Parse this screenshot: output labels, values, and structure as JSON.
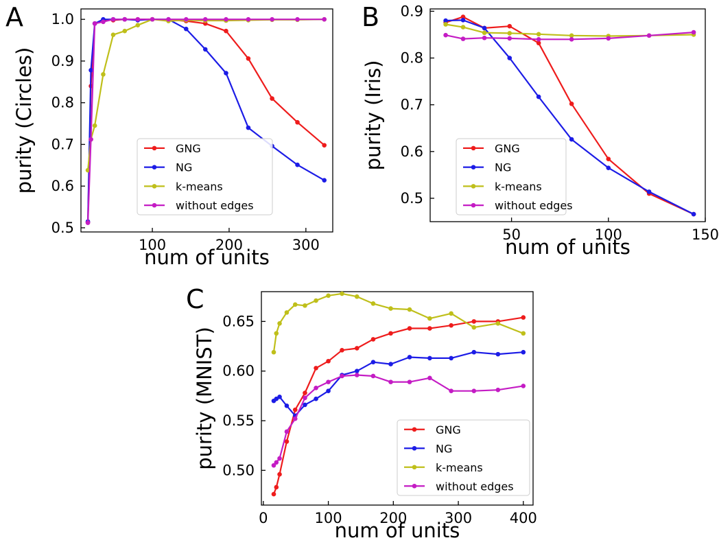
{
  "colors": {
    "GNG": "#ee1c1c",
    "NG": "#1c1ce6",
    "k-means": "#bfbf1a",
    "without edges": "#c41cc4"
  },
  "chart_data": [
    {
      "panel": "A",
      "type": "line",
      "xlabel": "num of units",
      "ylabel": "purity (Circles)",
      "xlim": [
        7,
        335
      ],
      "ylim": [
        0.49,
        1.025
      ],
      "xticks": [
        100,
        200,
        300
      ],
      "yticks": [
        0.5,
        0.6,
        0.7,
        0.8,
        0.9,
        1.0
      ],
      "xtick_labels": [
        "100",
        "200",
        "300"
      ],
      "ytick_labels": [
        "0.5",
        "0.6",
        "0.7",
        "0.8",
        "0.9",
        "1.0"
      ],
      "legend": {
        "position": "lower-right",
        "entries": [
          "GNG",
          "NG",
          "k-means",
          "without edges"
        ]
      },
      "series": [
        {
          "name": "GNG",
          "x": [
            16,
            20,
            25,
            36,
            49,
            64,
            81,
            100,
            121,
            144,
            169,
            196,
            225,
            256,
            289,
            324
          ],
          "y": [
            0.513,
            0.84,
            0.99,
            0.999,
            0.998,
            1.0,
            1.0,
            1.0,
            0.999,
            0.996,
            0.99,
            0.972,
            0.906,
            0.81,
            0.753,
            0.698
          ]
        },
        {
          "name": "NG",
          "x": [
            16,
            20,
            25,
            36,
            49,
            64,
            81,
            100,
            121,
            144,
            169,
            196,
            225,
            256,
            289,
            324
          ],
          "y": [
            0.515,
            0.878,
            0.99,
            1.0,
            1.0,
            1.0,
            0.998,
            1.0,
            1.0,
            0.977,
            0.928,
            0.871,
            0.74,
            0.696,
            0.651,
            0.614
          ]
        },
        {
          "name": "k-means",
          "x": [
            16,
            20,
            25,
            36,
            49,
            64,
            81,
            100,
            121,
            144,
            169,
            196,
            225,
            256,
            289,
            324
          ],
          "y": [
            0.638,
            0.712,
            0.745,
            0.868,
            0.963,
            0.972,
            0.986,
            1.0,
            0.996,
            0.998,
            0.997,
            0.997,
            0.998,
            0.999,
            0.999,
            1.0
          ]
        },
        {
          "name": "without edges",
          "x": [
            16,
            20,
            25,
            36,
            49,
            64,
            81,
            100,
            121,
            144,
            169,
            196,
            225,
            256,
            289,
            324
          ],
          "y": [
            0.512,
            0.712,
            0.99,
            0.994,
            1.0,
            1.0,
            1.0,
            1.0,
            1.0,
            1.0,
            1.0,
            1.0,
            1.0,
            1.0,
            1.0,
            1.0
          ]
        }
      ]
    },
    {
      "panel": "B",
      "type": "line",
      "xlabel": "num of units",
      "ylabel": "purity (Iris)",
      "xlim": [
        8,
        150
      ],
      "ylim": [
        0.45,
        0.905
      ],
      "xticks": [
        50,
        100,
        150
      ],
      "yticks": [
        0.5,
        0.6,
        0.7,
        0.8,
        0.9
      ],
      "xtick_labels": [
        "50",
        "100",
        "150"
      ],
      "ytick_labels": [
        "0.5",
        "0.6",
        "0.7",
        "0.8",
        "0.9"
      ],
      "legend": {
        "position": "lower-right",
        "entries": [
          "GNG",
          "NG",
          "k-means",
          "without edges"
        ]
      },
      "series": [
        {
          "name": "GNG",
          "x": [
            16,
            25,
            36,
            49,
            64,
            81,
            100,
            121,
            144
          ],
          "y": [
            0.876,
            0.888,
            0.864,
            0.868,
            0.832,
            0.702,
            0.584,
            0.51,
            0.466
          ]
        },
        {
          "name": "NG",
          "x": [
            16,
            25,
            36,
            49,
            64,
            81,
            100,
            121,
            144
          ],
          "y": [
            0.88,
            0.881,
            0.864,
            0.8,
            0.717,
            0.626,
            0.565,
            0.514,
            0.466
          ]
        },
        {
          "name": "k-means",
          "x": [
            16,
            25,
            36,
            49,
            64,
            81,
            100,
            121,
            144
          ],
          "y": [
            0.872,
            0.866,
            0.854,
            0.853,
            0.851,
            0.848,
            0.847,
            0.848,
            0.85
          ]
        },
        {
          "name": "without edges",
          "x": [
            16,
            25,
            36,
            49,
            64,
            81,
            100,
            121,
            144
          ],
          "y": [
            0.849,
            0.841,
            0.843,
            0.842,
            0.84,
            0.84,
            0.842,
            0.848,
            0.855
          ]
        }
      ]
    },
    {
      "panel": "C",
      "type": "line",
      "xlabel": "num of units",
      "ylabel": "purity (MNIST)",
      "xlim": [
        -3,
        415
      ],
      "ylim": [
        0.465,
        0.68
      ],
      "xticks": [
        0,
        100,
        200,
        300,
        400
      ],
      "yticks": [
        0.5,
        0.55,
        0.6,
        0.65
      ],
      "xtick_labels": [
        "0",
        "100",
        "200",
        "300",
        "400"
      ],
      "ytick_labels": [
        "0.50",
        "0.55",
        "0.60",
        "0.65"
      ],
      "legend": {
        "position": "lower-right",
        "entries": [
          "GNG",
          "NG",
          "k-means",
          "without edges"
        ]
      },
      "series": [
        {
          "name": "GNG",
          "x": [
            16,
            20,
            25,
            36,
            49,
            64,
            81,
            100,
            121,
            144,
            169,
            196,
            225,
            256,
            289,
            324,
            361,
            400
          ],
          "y": [
            0.476,
            0.483,
            0.496,
            0.529,
            0.561,
            0.578,
            0.603,
            0.61,
            0.621,
            0.623,
            0.632,
            0.638,
            0.643,
            0.643,
            0.646,
            0.65,
            0.65,
            0.654
          ]
        },
        {
          "name": "NG",
          "x": [
            16,
            20,
            25,
            36,
            49,
            64,
            81,
            100,
            121,
            144,
            169,
            196,
            225,
            256,
            289,
            324,
            361,
            400
          ],
          "y": [
            0.57,
            0.572,
            0.574,
            0.565,
            0.555,
            0.566,
            0.572,
            0.58,
            0.596,
            0.6,
            0.609,
            0.607,
            0.614,
            0.613,
            0.613,
            0.619,
            0.617,
            0.619
          ]
        },
        {
          "name": "k-means",
          "x": [
            16,
            20,
            25,
            36,
            49,
            64,
            81,
            100,
            121,
            144,
            169,
            196,
            225,
            256,
            289,
            324,
            361,
            400
          ],
          "y": [
            0.619,
            0.638,
            0.648,
            0.659,
            0.667,
            0.666,
            0.671,
            0.676,
            0.678,
            0.675,
            0.668,
            0.663,
            0.662,
            0.653,
            0.658,
            0.644,
            0.648,
            0.638
          ]
        },
        {
          "name": "without edges",
          "x": [
            16,
            20,
            25,
            36,
            49,
            64,
            81,
            100,
            121,
            144,
            169,
            196,
            225,
            256,
            289,
            324,
            361,
            400
          ],
          "y": [
            0.505,
            0.508,
            0.512,
            0.539,
            0.552,
            0.573,
            0.583,
            0.589,
            0.595,
            0.596,
            0.595,
            0.589,
            0.589,
            0.593,
            0.58,
            0.58,
            0.581,
            0.585
          ]
        }
      ]
    }
  ]
}
